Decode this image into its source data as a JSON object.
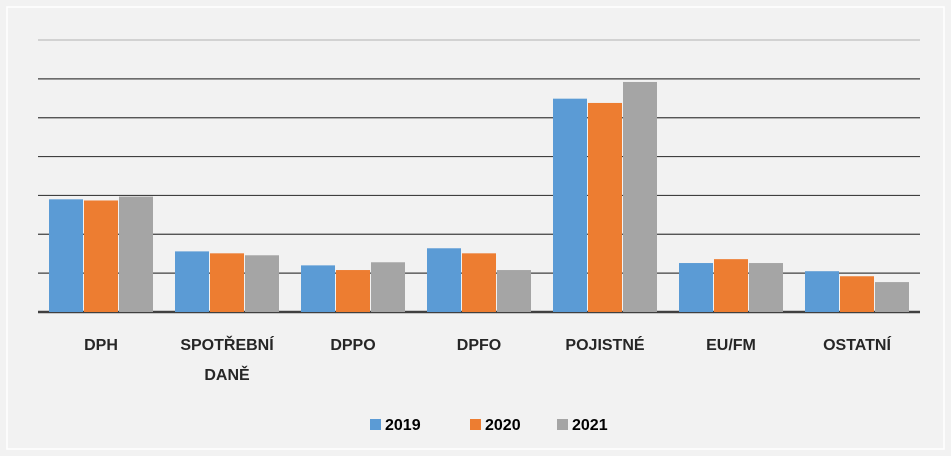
{
  "chart_data": {
    "type": "bar",
    "categories": [
      "DPH",
      "SPOTŘEBNÍ DANĚ",
      "DPPO",
      "DPFO",
      "POJISTNÉ",
      "EU/FM",
      "OSTATNÍ"
    ],
    "series": [
      {
        "name": "2019",
        "color": "#5b9bd5",
        "values": [
          2.9,
          1.56,
          1.2,
          1.64,
          5.49,
          1.26,
          1.05
        ]
      },
      {
        "name": "2020",
        "color": "#ed7d31",
        "values": [
          2.87,
          1.51,
          1.08,
          1.51,
          5.38,
          1.36,
          0.92
        ]
      },
      {
        "name": "2021",
        "color": "#a5a5a5",
        "values": [
          2.97,
          1.46,
          1.28,
          1.08,
          5.92,
          1.26,
          0.77
        ]
      }
    ],
    "ylim": [
      0,
      7
    ],
    "yticks": [
      0,
      1,
      2,
      3,
      4,
      5,
      6,
      7
    ],
    "grid": true,
    "legend": "bottom"
  }
}
